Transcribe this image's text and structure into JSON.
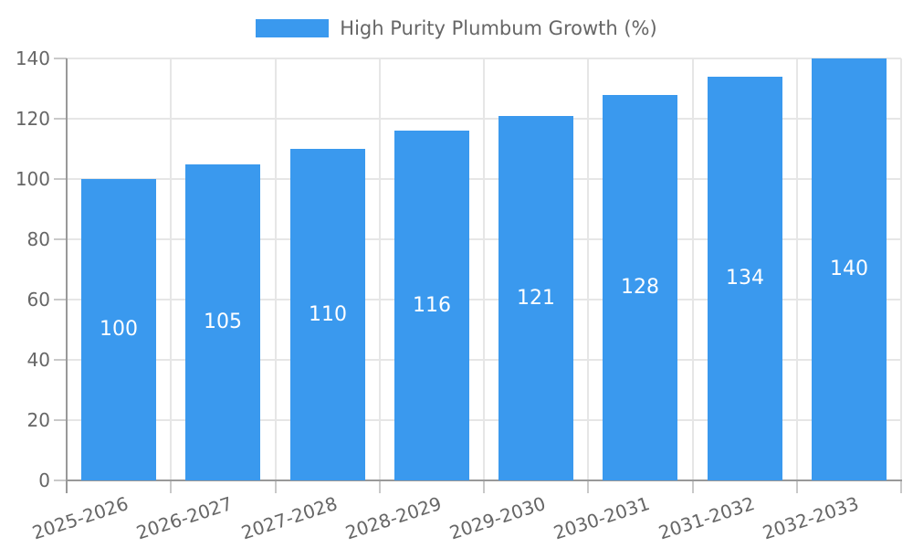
{
  "chart_data": {
    "type": "bar",
    "legend": {
      "label": "High Purity Plumbum Growth (%)",
      "position": "top"
    },
    "categories": [
      "2025-2026",
      "2026-2027",
      "2027-2028",
      "2028-2029",
      "2029-2030",
      "2030-2031",
      "2031-2032",
      "2032-2033"
    ],
    "series": [
      {
        "name": "High Purity Plumbum Growth (%)",
        "values": [
          100,
          105,
          110,
          116,
          121,
          128,
          134,
          140
        ]
      }
    ],
    "ylim": [
      0,
      140
    ],
    "yticks": [
      0,
      20,
      40,
      60,
      80,
      100,
      120,
      140
    ],
    "grid": true,
    "x_label_rotation_deg": -18,
    "colors": {
      "bar": "#3a99ee",
      "bar_label": "#ffffff",
      "axis_line": "#999999",
      "tick_mark": "#c9c9c9",
      "gridline": "#e6e6e6",
      "text": "#666666",
      "background": "#ffffff"
    }
  }
}
